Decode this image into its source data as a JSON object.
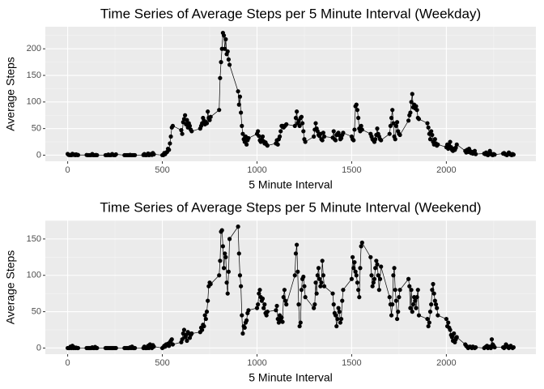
{
  "chart_data": [
    {
      "type": "line",
      "title": "Time Series of Average Steps per 5 Minute Interval (Weekday)",
      "x_label": "5 Minute Interval",
      "y_label": "Average Steps",
      "color": "#000000",
      "grid": true,
      "x": [
        0,
        5,
        10,
        15,
        20,
        25,
        30,
        35,
        40,
        45,
        50,
        55,
        100,
        105,
        110,
        115,
        120,
        125,
        130,
        135,
        140,
        145,
        150,
        155,
        200,
        205,
        210,
        215,
        220,
        225,
        230,
        235,
        240,
        245,
        250,
        255,
        300,
        305,
        310,
        315,
        320,
        325,
        330,
        335,
        340,
        345,
        350,
        355,
        400,
        405,
        410,
        415,
        420,
        425,
        430,
        435,
        440,
        445,
        450,
        455,
        500,
        505,
        510,
        515,
        520,
        525,
        530,
        535,
        540,
        545,
        550,
        555,
        600,
        605,
        610,
        615,
        620,
        625,
        630,
        635,
        640,
        645,
        650,
        655,
        700,
        705,
        710,
        715,
        720,
        725,
        730,
        735,
        740,
        745,
        750,
        755,
        800,
        805,
        810,
        815,
        820,
        825,
        830,
        835,
        840,
        845,
        850,
        855,
        900,
        905,
        910,
        915,
        920,
        925,
        930,
        935,
        940,
        945,
        950,
        955,
        1000,
        1005,
        1010,
        1015,
        1020,
        1025,
        1030,
        1035,
        1040,
        1045,
        1050,
        1055,
        1100,
        1105,
        1110,
        1115,
        1120,
        1125,
        1130,
        1135,
        1140,
        1145,
        1150,
        1155,
        1200,
        1205,
        1210,
        1215,
        1220,
        1225,
        1230,
        1235,
        1240,
        1245,
        1250,
        1255,
        1300,
        1305,
        1310,
        1315,
        1320,
        1325,
        1330,
        1335,
        1340,
        1345,
        1350,
        1355,
        1400,
        1405,
        1410,
        1415,
        1420,
        1425,
        1430,
        1435,
        1440,
        1445,
        1450,
        1455,
        1500,
        1505,
        1510,
        1515,
        1520,
        1525,
        1530,
        1535,
        1540,
        1545,
        1550,
        1555,
        1600,
        1605,
        1610,
        1615,
        1620,
        1625,
        1630,
        1635,
        1640,
        1645,
        1650,
        1655,
        1700,
        1705,
        1710,
        1715,
        1720,
        1725,
        1730,
        1735,
        1740,
        1745,
        1750,
        1755,
        1800,
        1805,
        1810,
        1815,
        1820,
        1825,
        1830,
        1835,
        1840,
        1845,
        1850,
        1855,
        1900,
        1905,
        1910,
        1915,
        1920,
        1925,
        1930,
        1935,
        1940,
        1945,
        1950,
        1955,
        2000,
        2005,
        2010,
        2015,
        2020,
        2025,
        2030,
        2035,
        2040,
        2045,
        2050,
        2055,
        2100,
        2105,
        2110,
        2115,
        2120,
        2125,
        2130,
        2135,
        2140,
        2145,
        2150,
        2155,
        2200,
        2205,
        2210,
        2215,
        2220,
        2225,
        2230,
        2235,
        2240,
        2245,
        2250,
        2255,
        2300,
        2305,
        2310,
        2315,
        2320,
        2325,
        2330,
        2335,
        2340,
        2345,
        2350,
        2355
      ],
      "values": [
        2.3,
        0.5,
        0.2,
        0.2,
        0.1,
        2.5,
        0.6,
        1.1,
        0,
        1.4,
        0.3,
        0.3,
        0.4,
        0,
        0,
        0,
        0,
        0.2,
        2,
        0,
        0,
        0,
        0.3,
        0,
        0,
        0,
        0,
        1.2,
        0,
        0,
        0.2,
        2,
        0.4,
        0,
        0,
        1.5,
        0,
        0,
        0,
        0,
        0,
        0,
        0.5,
        0,
        0,
        0,
        0,
        0,
        0.3,
        2,
        0,
        0,
        0.5,
        3,
        0,
        1,
        2,
        0.5,
        4,
        1.5,
        0,
        0,
        4,
        2,
        5,
        6,
        12,
        10,
        22,
        35,
        52,
        55,
        47,
        40,
        62,
        68,
        75,
        58,
        66,
        52,
        60,
        55,
        48,
        45,
        50,
        55,
        60,
        70,
        65,
        58,
        62,
        60,
        82,
        70,
        66,
        72,
        85,
        145,
        175,
        200,
        230,
        225,
        200,
        218,
        190,
        195,
        180,
        170,
        120,
        95,
        110,
        80,
        55,
        40,
        30,
        25,
        35,
        20,
        28,
        32,
        40,
        45,
        36,
        28,
        25,
        30,
        35,
        26,
        22,
        24,
        20,
        18,
        22,
        28,
        20,
        30,
        35,
        45,
        55,
        55,
        52,
        54,
        56,
        58,
        55,
        70,
        82,
        60,
        65,
        55,
        70,
        72,
        60,
        45,
        30,
        25,
        35,
        48,
        60,
        50,
        45,
        38,
        36,
        40,
        30,
        28,
        42,
        35,
        33,
        45,
        30,
        28,
        38,
        40,
        42,
        37,
        30,
        32,
        38,
        42,
        35,
        30,
        28,
        48,
        92,
        95,
        85,
        70,
        50,
        45,
        55,
        48,
        40,
        35,
        30,
        28,
        25,
        30,
        38,
        50,
        40,
        35,
        30,
        28,
        40,
        55,
        70,
        85,
        60,
        35,
        30,
        55,
        62,
        45,
        40,
        38,
        65,
        75,
        80,
        100,
        115,
        90,
        95,
        88,
        92,
        85,
        70,
        68,
        60,
        52,
        40,
        30,
        45,
        38,
        25,
        20,
        30,
        22,
        18,
        20,
        15,
        20,
        12,
        18,
        25,
        15,
        10,
        8,
        12,
        10,
        14,
        20,
        8,
        5,
        10,
        6,
        12,
        8,
        4,
        6,
        3,
        5,
        8,
        2,
        3,
        2,
        5,
        1,
        0,
        2,
        8,
        3,
        1,
        0,
        2,
        1,
        3,
        4,
        2,
        1,
        0,
        2,
        5,
        3,
        1,
        0,
        2,
        1
      ],
      "xlim": [
        -118,
        2473
      ],
      "ylim": [
        -11.5,
        241.5
      ],
      "xticks": [
        0,
        500,
        1000,
        1500,
        2000
      ],
      "yticks": [
        0,
        50,
        100,
        150,
        200
      ]
    },
    {
      "type": "line",
      "title": "Time Series of Average Steps per 5 Minute Interval (Weekend)",
      "x_label": "5 Minute Interval",
      "y_label": "Average Steps",
      "color": "#000000",
      "grid": true,
      "x": [
        0,
        5,
        10,
        15,
        20,
        25,
        30,
        35,
        40,
        45,
        50,
        55,
        100,
        105,
        110,
        115,
        120,
        125,
        130,
        135,
        140,
        145,
        150,
        155,
        200,
        205,
        210,
        215,
        220,
        225,
        230,
        235,
        240,
        245,
        250,
        255,
        300,
        305,
        310,
        315,
        320,
        325,
        330,
        335,
        340,
        345,
        350,
        355,
        400,
        405,
        410,
        415,
        420,
        425,
        430,
        435,
        440,
        445,
        450,
        455,
        500,
        505,
        510,
        515,
        520,
        525,
        530,
        535,
        540,
        545,
        550,
        555,
        600,
        605,
        610,
        615,
        620,
        625,
        630,
        635,
        640,
        645,
        650,
        655,
        700,
        705,
        710,
        715,
        720,
        725,
        730,
        735,
        740,
        745,
        750,
        755,
        800,
        805,
        810,
        815,
        820,
        825,
        830,
        835,
        840,
        845,
        850,
        855,
        900,
        905,
        910,
        915,
        920,
        925,
        930,
        935,
        940,
        945,
        950,
        955,
        1000,
        1005,
        1010,
        1015,
        1020,
        1025,
        1030,
        1035,
        1040,
        1045,
        1050,
        1055,
        1100,
        1105,
        1110,
        1115,
        1120,
        1125,
        1130,
        1135,
        1140,
        1145,
        1150,
        1155,
        1200,
        1205,
        1210,
        1215,
        1220,
        1225,
        1230,
        1235,
        1240,
        1245,
        1250,
        1255,
        1300,
        1305,
        1310,
        1315,
        1320,
        1325,
        1330,
        1335,
        1340,
        1345,
        1350,
        1355,
        1400,
        1405,
        1410,
        1415,
        1420,
        1425,
        1430,
        1435,
        1440,
        1445,
        1450,
        1455,
        1500,
        1505,
        1510,
        1515,
        1520,
        1525,
        1530,
        1535,
        1540,
        1545,
        1550,
        1555,
        1600,
        1605,
        1610,
        1615,
        1620,
        1625,
        1630,
        1635,
        1640,
        1645,
        1650,
        1655,
        1700,
        1705,
        1710,
        1715,
        1720,
        1725,
        1730,
        1735,
        1740,
        1745,
        1750,
        1755,
        1800,
        1805,
        1810,
        1815,
        1820,
        1825,
        1830,
        1835,
        1840,
        1845,
        1850,
        1855,
        1900,
        1905,
        1910,
        1915,
        1920,
        1925,
        1930,
        1935,
        1940,
        1945,
        1950,
        1955,
        2000,
        2005,
        2010,
        2015,
        2020,
        2025,
        2030,
        2035,
        2040,
        2045,
        2050,
        2055,
        2100,
        2105,
        2110,
        2115,
        2120,
        2125,
        2130,
        2135,
        2140,
        2145,
        2150,
        2155,
        2200,
        2205,
        2210,
        2215,
        2220,
        2225,
        2230,
        2235,
        2240,
        2245,
        2250,
        2255,
        2300,
        2305,
        2310,
        2315,
        2320,
        2325,
        2330,
        2335,
        2340,
        2345,
        2350,
        2355
      ],
      "values": [
        0,
        0,
        0,
        2,
        0,
        3,
        0,
        1,
        0,
        0.5,
        0,
        0,
        0,
        0,
        0,
        0,
        0,
        0,
        1,
        0,
        0,
        1.5,
        0,
        0,
        0,
        0,
        0,
        0,
        0,
        0,
        0,
        0,
        0,
        0,
        0,
        0,
        0,
        0,
        0,
        0,
        0,
        0,
        1,
        0,
        2,
        0,
        0,
        0,
        0,
        2,
        0,
        0,
        0,
        3,
        0,
        5,
        1,
        0,
        4,
        2,
        0,
        1,
        3,
        2,
        5,
        4,
        6,
        3,
        8,
        10,
        12,
        5,
        8,
        12,
        20,
        25,
        15,
        18,
        10,
        22,
        20,
        14,
        18,
        20,
        22,
        28,
        25,
        32,
        30,
        45,
        40,
        50,
        65,
        85,
        90,
        88,
        100,
        120,
        160,
        162,
        140,
        110,
        130,
        125,
        90,
        75,
        105,
        150,
        167,
        130,
        100,
        85,
        45,
        20,
        30,
        28,
        35,
        38,
        48,
        52,
        55,
        60,
        75,
        80,
        70,
        65,
        68,
        55,
        60,
        48,
        45,
        50,
        52,
        58,
        40,
        35,
        45,
        38,
        42,
        36,
        70,
        80,
        65,
        60,
        100,
        130,
        142,
        105,
        60,
        30,
        35,
        80,
        95,
        98,
        85,
        70,
        55,
        60,
        90,
        75,
        100,
        110,
        95,
        85,
        90,
        120,
        100,
        85,
        75,
        60,
        48,
        45,
        30,
        40,
        55,
        50,
        35,
        40,
        65,
        80,
        95,
        125,
        110,
        118,
        105,
        100,
        90,
        80,
        70,
        110,
        140,
        145,
        125,
        100,
        85,
        90,
        95,
        110,
        120,
        115,
        100,
        80,
        95,
        112,
        70,
        60,
        45,
        60,
        100,
        110,
        80,
        65,
        40,
        50,
        70,
        80,
        95,
        85,
        55,
        80,
        50,
        60,
        70,
        65,
        55,
        70,
        80,
        45,
        40,
        30,
        35,
        50,
        60,
        80,
        88,
        75,
        65,
        60,
        55,
        45,
        40,
        30,
        35,
        28,
        25,
        18,
        15,
        10,
        20,
        8,
        12,
        15,
        5,
        3,
        2,
        0,
        1,
        2,
        1,
        0,
        2,
        1,
        0,
        1,
        0,
        1,
        2,
        3,
        0,
        1,
        2,
        0,
        12,
        5,
        3,
        1,
        1,
        0,
        2,
        5,
        3,
        1,
        0,
        2,
        3,
        1,
        0,
        1
      ],
      "xlim": [
        -118,
        2473
      ],
      "ylim": [
        -8.4,
        175.5
      ],
      "xticks": [
        0,
        500,
        1000,
        1500,
        2000
      ],
      "yticks": [
        0,
        50,
        100,
        150
      ]
    }
  ]
}
